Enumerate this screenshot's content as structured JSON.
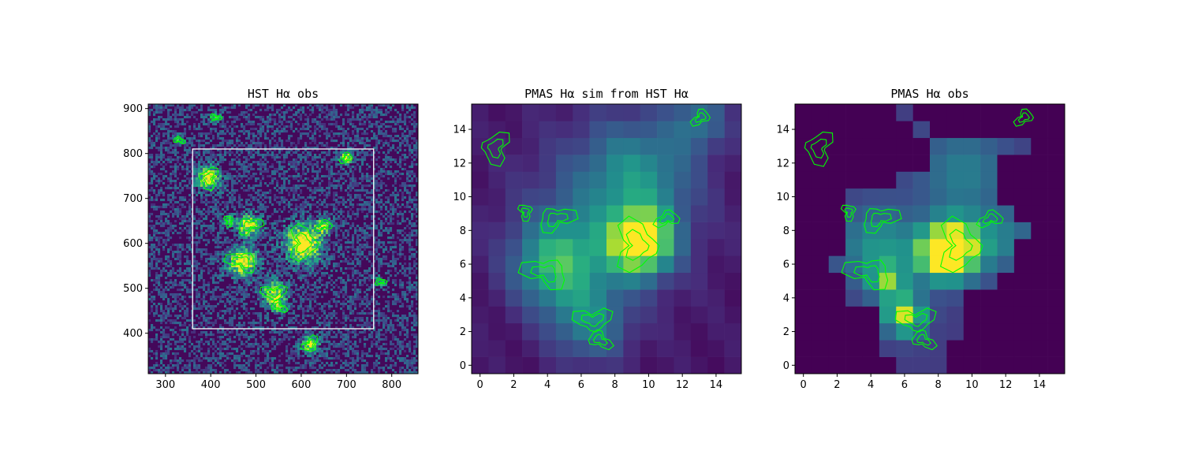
{
  "colormap": {
    "name": "viridis",
    "stops": [
      "#440154",
      "#472c7a",
      "#3b518b",
      "#2c718e",
      "#21908d",
      "#27ad81",
      "#5cc863",
      "#aadc32",
      "#fde725"
    ]
  },
  "contour_color": "#00ff00",
  "box_color": "#ffffff",
  "chart_data": [
    {
      "type": "heatmap",
      "title": "HST Hα obs",
      "xlim": [
        262,
        858
      ],
      "ylim": [
        310,
        910
      ],
      "xticks": [
        300,
        400,
        500,
        600,
        700,
        800
      ],
      "yticks": [
        400,
        500,
        600,
        700,
        800,
        900
      ],
      "footprint_box": {
        "x": [
          360,
          760
        ],
        "y": [
          410,
          810
        ]
      },
      "emission_knots": [
        {
          "x": 605,
          "y": 600,
          "sigma": 28,
          "amp": 1.0
        },
        {
          "x": 470,
          "y": 560,
          "sigma": 22,
          "amp": 0.9
        },
        {
          "x": 485,
          "y": 640,
          "sigma": 18,
          "amp": 0.8
        },
        {
          "x": 395,
          "y": 745,
          "sigma": 18,
          "amp": 0.85
        },
        {
          "x": 700,
          "y": 790,
          "sigma": 10,
          "amp": 0.8
        },
        {
          "x": 540,
          "y": 490,
          "sigma": 18,
          "amp": 0.75
        },
        {
          "x": 620,
          "y": 375,
          "sigma": 14,
          "amp": 0.7
        },
        {
          "x": 650,
          "y": 640,
          "sigma": 12,
          "amp": 0.6
        },
        {
          "x": 550,
          "y": 460,
          "sigma": 12,
          "amp": 0.5
        },
        {
          "x": 330,
          "y": 830,
          "sigma": 8,
          "amp": 0.5
        },
        {
          "x": 410,
          "y": 880,
          "sigma": 8,
          "amp": 0.5
        },
        {
          "x": 775,
          "y": 515,
          "sigma": 8,
          "amp": 0.45
        },
        {
          "x": 440,
          "y": 650,
          "sigma": 9,
          "amp": 0.5
        }
      ]
    },
    {
      "type": "heatmap",
      "title": "PMAS Hα sim from HST Hα",
      "xlim": [
        -0.5,
        15.5
      ],
      "ylim": [
        -0.5,
        15.5
      ],
      "xticks": [
        0,
        2,
        4,
        6,
        8,
        10,
        12,
        14
      ],
      "yticks": [
        0,
        2,
        4,
        6,
        8,
        10,
        12,
        14
      ],
      "grid_size": 16,
      "blobs": [
        {
          "x": 9.5,
          "y": 7.3,
          "sigma": 1.3,
          "amp": 1.0
        },
        {
          "x": 4.6,
          "y": 6.0,
          "sigma": 1.8,
          "amp": 0.55
        },
        {
          "x": 6.5,
          "y": 2.5,
          "sigma": 1.6,
          "amp": 0.35
        },
        {
          "x": 9.5,
          "y": 11.5,
          "sigma": 2.2,
          "amp": 0.32
        },
        {
          "x": 13.0,
          "y": 14.5,
          "sigma": 1.2,
          "amp": 0.3
        },
        {
          "x": 7.5,
          "y": 9.0,
          "sigma": 3.5,
          "amp": 0.25
        }
      ]
    },
    {
      "type": "heatmap",
      "title": "PMAS Hα obs",
      "xlim": [
        -0.5,
        15.5
      ],
      "ylim": [
        -0.5,
        15.5
      ],
      "xticks": [
        0,
        2,
        4,
        6,
        8,
        10,
        12,
        14
      ],
      "yticks": [
        0,
        2,
        4,
        6,
        8,
        10,
        12,
        14
      ],
      "grid_size": 16,
      "blobs": [
        {
          "x": 9.0,
          "y": 7.0,
          "sigma": 1.2,
          "amp": 0.9
        },
        {
          "x": 8.0,
          "y": 6.5,
          "sigma": 1.0,
          "amp": 0.5
        },
        {
          "x": 5.0,
          "y": 5.0,
          "sigma": 0.7,
          "amp": 0.5
        },
        {
          "x": 6.0,
          "y": 3.0,
          "sigma": 0.8,
          "amp": 0.75
        },
        {
          "x": 4.5,
          "y": 7.0,
          "sigma": 1.6,
          "amp": 0.35
        },
        {
          "x": 9.5,
          "y": 11.5,
          "sigma": 1.8,
          "amp": 0.25
        },
        {
          "x": 12.0,
          "y": 7.5,
          "sigma": 1.2,
          "amp": 0.22
        }
      ],
      "floor_mask_rows": {
        "15": [
          6,
          6
        ],
        "14": [
          7,
          7
        ],
        "13": [
          8,
          13
        ],
        "12": [
          8,
          11
        ],
        "11": [
          6,
          11
        ],
        "10": [
          3,
          11
        ],
        "9": [
          3,
          12
        ],
        "8": [
          3,
          13
        ],
        "7": [
          3,
          12
        ],
        "6": [
          2,
          12
        ],
        "5": [
          3,
          11
        ],
        "4": [
          3,
          9
        ],
        "3": [
          5,
          9
        ],
        "2": [
          5,
          9
        ],
        "1": [
          5,
          8
        ],
        "0": [
          6,
          8
        ]
      }
    }
  ]
}
